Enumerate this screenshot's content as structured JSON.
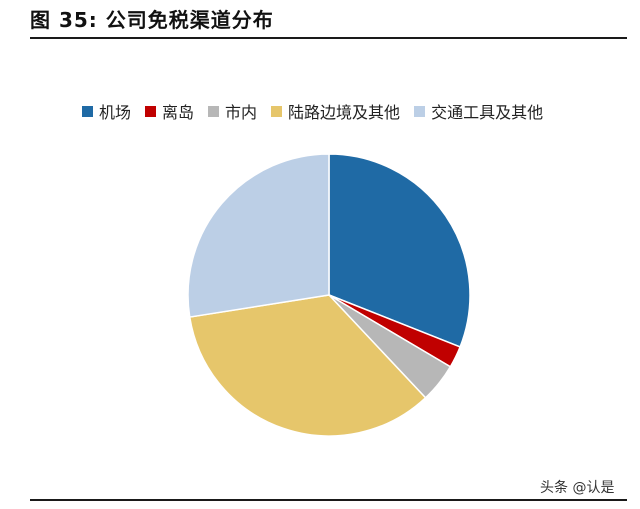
{
  "title": "图 35:  公司免税渠道分布",
  "watermark": "头条 @认是",
  "chart_data": {
    "type": "pie",
    "title": "",
    "legend_position": "top",
    "start_angle": "12 o'clock, clockwise",
    "series": [
      {
        "name": "机场",
        "value": 31,
        "color": "#1f6aa5"
      },
      {
        "name": "离岛",
        "value": 2.5,
        "color": "#c00000"
      },
      {
        "name": "市内",
        "value": 4.5,
        "color": "#b7b7b7"
      },
      {
        "name": "陆路边境及其他",
        "value": 34.5,
        "color": "#e6c66b"
      },
      {
        "name": "交通工具及其他",
        "value": 27.5,
        "color": "#bccfe6"
      }
    ]
  }
}
